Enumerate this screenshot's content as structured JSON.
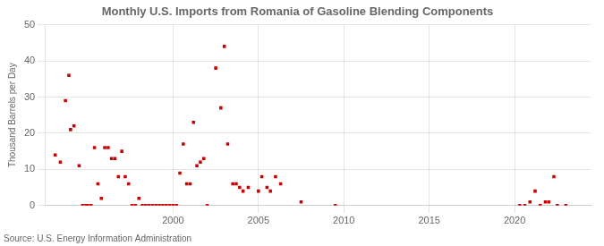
{
  "chart_data": {
    "type": "scatter",
    "title": "Monthly U.S. Imports from Romania of Gasoline Blending Components",
    "ylabel": "Thousand Barrels per Day",
    "annotation": "Source: U.S. Energy Information Administration",
    "color": "#cc0000",
    "marker": "square",
    "grid": true,
    "xlim": [
      1992.5,
      2024.5
    ],
    "xticks": [
      2000,
      2005,
      2010,
      2015,
      2020
    ],
    "ylim": [
      0,
      50
    ],
    "yticks": [
      0,
      10,
      20,
      30,
      40,
      50
    ],
    "x": [
      1993.1,
      1993.4,
      1993.7,
      1993.9,
      1994.0,
      1994.2,
      1994.5,
      1994.7,
      1994.9,
      1995.0,
      1995.2,
      1995.4,
      1995.6,
      1995.8,
      1996.0,
      1996.2,
      1996.4,
      1996.6,
      1996.8,
      1997.0,
      1997.2,
      1997.4,
      1997.6,
      1997.8,
      1998.0,
      1998.2,
      1998.4,
      1998.6,
      1998.8,
      1999.0,
      1999.2,
      1999.4,
      1999.6,
      1999.8,
      2000.0,
      2000.2,
      2000.4,
      2000.6,
      2000.8,
      2001.0,
      2001.2,
      2001.4,
      2001.6,
      2001.8,
      2002.0,
      2002.5,
      2002.8,
      2003.0,
      2003.2,
      2003.5,
      2003.7,
      2003.9,
      2004.1,
      2004.4,
      2005.0,
      2005.2,
      2005.5,
      2005.7,
      2006.0,
      2006.3,
      2007.5,
      2009.5,
      2020.3,
      2020.6,
      2020.9,
      2021.2,
      2021.5,
      2021.8,
      2022.0,
      2022.3,
      2022.5,
      2023.0
    ],
    "values": [
      14,
      12,
      29,
      36,
      21,
      22,
      11,
      0,
      0,
      0,
      0,
      16,
      6,
      2,
      16,
      16,
      13,
      13,
      8,
      15,
      8,
      6,
      0,
      0,
      2,
      0,
      0,
      0,
      0,
      0,
      0,
      0,
      0,
      0,
      0,
      0,
      9,
      17,
      6,
      6,
      23,
      11,
      12,
      13,
      0,
      38,
      27,
      44,
      17,
      6,
      6,
      5,
      4,
      5,
      4,
      8,
      5,
      4,
      8,
      6,
      1,
      0,
      0,
      0,
      1,
      4,
      0,
      1,
      1,
      8,
      0,
      0
    ]
  }
}
